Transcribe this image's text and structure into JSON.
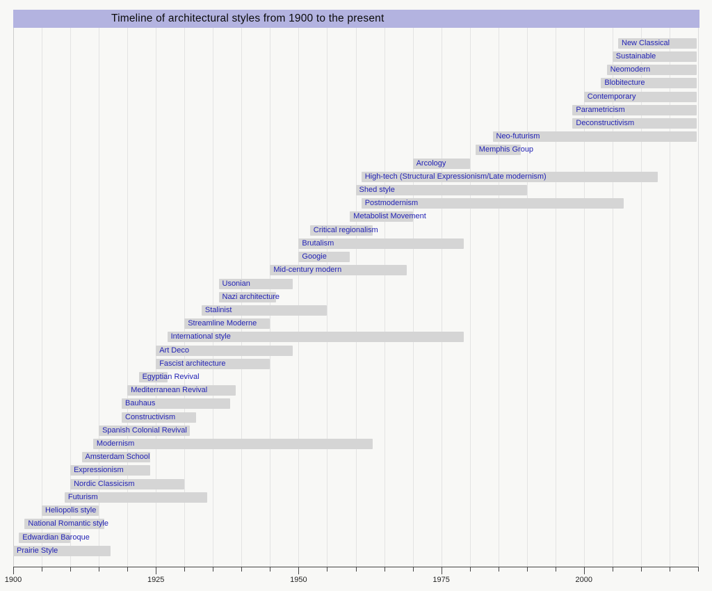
{
  "page": {
    "title": "Timeline of architectural styles from 1900 to the present"
  },
  "colors": {
    "background": "#f8f8f6",
    "title_background": "#b3b3e0",
    "title_text": "#0a0a0a",
    "bar_fill": "#d5d5d5",
    "bar_label_text": "#1f1fb4",
    "gridline": "#e3e3e3",
    "axis_line": "#444444",
    "tick_label_text": "#222222"
  },
  "chart_data": {
    "type": "timeline",
    "title": "Timeline of architectural styles from 1900 to the present",
    "xlabel": "",
    "ylabel": "",
    "grid": true,
    "x_axis": {
      "min": 1900,
      "max": 2020,
      "tick_step_years": 5,
      "labeled_ticks": [
        1900,
        1925,
        1950,
        1975,
        2000
      ],
      "present_year": 2020
    },
    "items": [
      {
        "label": "New Classical",
        "start": 2006,
        "end": "present"
      },
      {
        "label": "Sustainable",
        "start": 2005,
        "end": "present"
      },
      {
        "label": "Neomodern",
        "start": 2004,
        "end": "present"
      },
      {
        "label": "Blobitecture",
        "start": 2003,
        "end": "present"
      },
      {
        "label": "Contemporary",
        "start": 2000,
        "end": "present"
      },
      {
        "label": "Parametricism",
        "start": 1998,
        "end": "present"
      },
      {
        "label": "Deconstructivism",
        "start": 1998,
        "end": "present"
      },
      {
        "label": "Neo-futurism",
        "start": 1984,
        "end": "present"
      },
      {
        "label": "Memphis Group",
        "start": 1981,
        "end": 1989
      },
      {
        "label": "Arcology",
        "start": 1970,
        "end": 1980
      },
      {
        "label": "High-tech (Structural Expressionism/Late modernism)",
        "start": 1961,
        "end": 2013
      },
      {
        "label": "Shed style",
        "start": 1960,
        "end": 1990
      },
      {
        "label": "Postmodernism",
        "start": 1961,
        "end": 2007
      },
      {
        "label": "Metabolist Movement",
        "start": 1959,
        "end": 1970
      },
      {
        "label": "Critical regionalism",
        "start": 1952,
        "end": 1963
      },
      {
        "label": "Brutalism",
        "start": 1950,
        "end": 1979
      },
      {
        "label": "Googie",
        "start": 1950,
        "end": 1959
      },
      {
        "label": "Mid-century modern",
        "start": 1945,
        "end": 1969
      },
      {
        "label": "Usonian",
        "start": 1936,
        "end": 1949
      },
      {
        "label": "Nazi architecture",
        "start": 1936,
        "end": 1946
      },
      {
        "label": "Stalinist",
        "start": 1933,
        "end": 1955
      },
      {
        "label": "Streamline Moderne",
        "start": 1930,
        "end": 1945
      },
      {
        "label": "International style",
        "start": 1927,
        "end": 1979
      },
      {
        "label": "Art Deco",
        "start": 1925,
        "end": 1949
      },
      {
        "label": "Fascist architecture",
        "start": 1925,
        "end": 1945
      },
      {
        "label": "Egyptian Revival",
        "start": 1922,
        "end": 1927
      },
      {
        "label": "Mediterranean Revival",
        "start": 1920,
        "end": 1939
      },
      {
        "label": "Bauhaus",
        "start": 1919,
        "end": 1938
      },
      {
        "label": "Constructivism",
        "start": 1919,
        "end": 1932
      },
      {
        "label": "Spanish Colonial Revival",
        "start": 1915,
        "end": 1931
      },
      {
        "label": "Modernism",
        "start": 1914,
        "end": 1963
      },
      {
        "label": "Amsterdam School",
        "start": 1912,
        "end": 1924
      },
      {
        "label": "Expressionism",
        "start": 1910,
        "end": 1924
      },
      {
        "label": "Nordic Classicism",
        "start": 1910,
        "end": 1930
      },
      {
        "label": "Futurism",
        "start": 1909,
        "end": 1934
      },
      {
        "label": "Heliopolis style",
        "start": 1905,
        "end": 1915
      },
      {
        "label": "National Romantic style",
        "start": 1902,
        "end": 1916
      },
      {
        "label": "Edwardian Baroque",
        "start": 1901,
        "end": 1910
      },
      {
        "label": "Prairie Style",
        "start": 1900,
        "end": 1917
      }
    ]
  }
}
